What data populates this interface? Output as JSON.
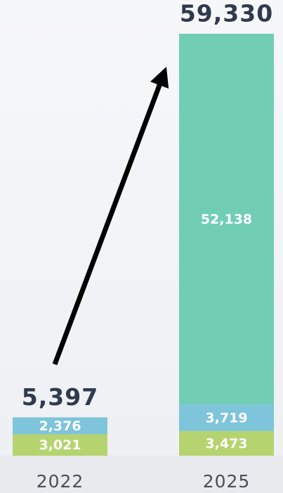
{
  "chart_data": {
    "type": "stacked_bar",
    "categories": [
      "2022",
      "2025"
    ],
    "series": [
      {
        "color": "#b5d46f",
        "values": [
          3021,
          3473
        ],
        "value_labels": [
          "3,021",
          "3,473"
        ]
      },
      {
        "color": "#7ec4da",
        "values": [
          2376,
          3719
        ],
        "value_labels": [
          "2,376",
          "3,719"
        ]
      },
      {
        "color": "#72cdb5",
        "values": [
          null,
          52138
        ],
        "value_labels": [
          null,
          "52,138"
        ]
      }
    ],
    "totals": [
      5397,
      59330
    ],
    "total_labels": [
      "5,397",
      "59,330"
    ]
  }
}
